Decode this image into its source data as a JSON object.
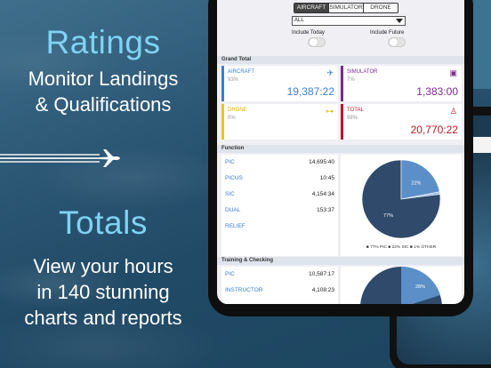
{
  "promo": {
    "ratings_title": "Ratings",
    "ratings_line1": "Monitor Landings",
    "ratings_line2": "& Qualifications",
    "totals_title": "Totals",
    "totals_line1": "View your hours",
    "totals_line2": "in 140 stunning",
    "totals_line3": "charts and reports"
  },
  "controls": {
    "segments": [
      "AIRCRAFT",
      "SIMULATOR",
      "DRONE"
    ],
    "active_segment": "AIRCRAFT",
    "filter_value": "ALL",
    "include_today": "Include Today",
    "include_future": "Include Future"
  },
  "grand_total": {
    "title": "Grand Total",
    "cards": [
      {
        "label": "AIRCRAFT",
        "percent": "93%",
        "value": "19,387:22",
        "color": "#3b7dd8",
        "icon": "airplane-icon"
      },
      {
        "label": "SIMULATOR",
        "percent": "7%",
        "value": "1,383:00",
        "color": "#7b2a8c",
        "icon": "simulator-icon"
      },
      {
        "label": "DRONE",
        "percent": "0%",
        "value": "",
        "color": "#f0c419",
        "icon": "drone-icon"
      },
      {
        "label": "TOTAL",
        "percent": "98%",
        "value": "20,770:22",
        "color": "#c0142a",
        "icon": "pilot-icon"
      }
    ]
  },
  "function": {
    "title": "Function",
    "rows": [
      {
        "label": "PIC",
        "value": "14,695:40"
      },
      {
        "label": "PICUS",
        "value": "10:45"
      },
      {
        "label": "SIC",
        "value": "4,154:34"
      },
      {
        "label": "DUAL",
        "value": "153:37"
      },
      {
        "label": "RELIEF",
        "value": ""
      }
    ],
    "legend": "■ 77% PIC  ■ 22% SIC  ■ 1% OTHER",
    "slice_label_big": "77%",
    "slice_label_small": "22%"
  },
  "training": {
    "title": "Training & Checking",
    "rows": [
      {
        "label": "PIC",
        "value": "10,587:17"
      },
      {
        "label": "INSTRUCTOR",
        "value": "4,108:23"
      }
    ],
    "slice_label": "28%"
  },
  "chart_data": [
    {
      "type": "pie",
      "categories": [
        "PIC",
        "SIC",
        "OTHER"
      ],
      "values": [
        77,
        22,
        1
      ],
      "colors": [
        "#2f4a6b",
        "#5b8fc7",
        "#9fc3e8"
      ]
    }
  ]
}
